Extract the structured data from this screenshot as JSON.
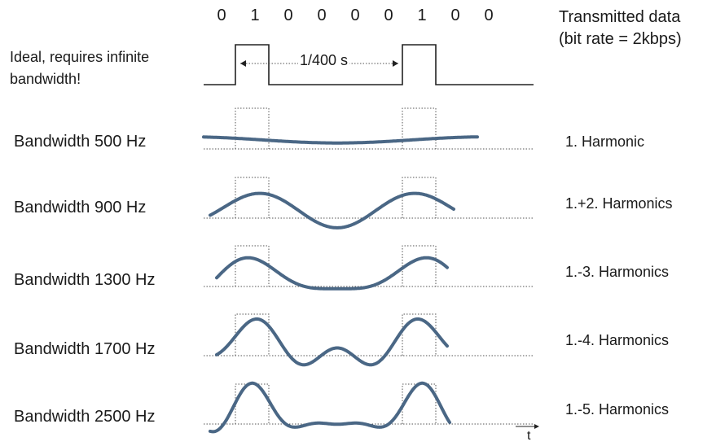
{
  "bits": [
    "0",
    "1",
    "0",
    "0",
    "0",
    "0",
    "1",
    "0",
    "0"
  ],
  "header": {
    "title_line1": "Transmitted data",
    "title_line2": "(bit rate = 2kbps)"
  },
  "ideal": {
    "line1": "Ideal, requires infinite",
    "line2": "bandwidth!",
    "period_label": "1/400 s"
  },
  "rows": [
    {
      "bandwidth": "Bandwidth 500 Hz",
      "harmonics": "1. Harmonic",
      "n": 1
    },
    {
      "bandwidth": "Bandwidth 900 Hz",
      "harmonics": "1.+2. Harmonics",
      "n": 2
    },
    {
      "bandwidth": "Bandwidth 1300 Hz",
      "harmonics": "1.-3. Harmonics",
      "n": 3
    },
    {
      "bandwidth": "Bandwidth 1700 Hz",
      "harmonics": "1.-4. Harmonics",
      "n": 4
    },
    {
      "bandwidth": "Bandwidth 2500 Hz",
      "harmonics": "1.-5. Harmonics",
      "n": 5
    }
  ],
  "time_axis_label": "t",
  "colors": {
    "wave": "#4a6785",
    "ideal": "#222222",
    "dotted": "#555555"
  }
}
